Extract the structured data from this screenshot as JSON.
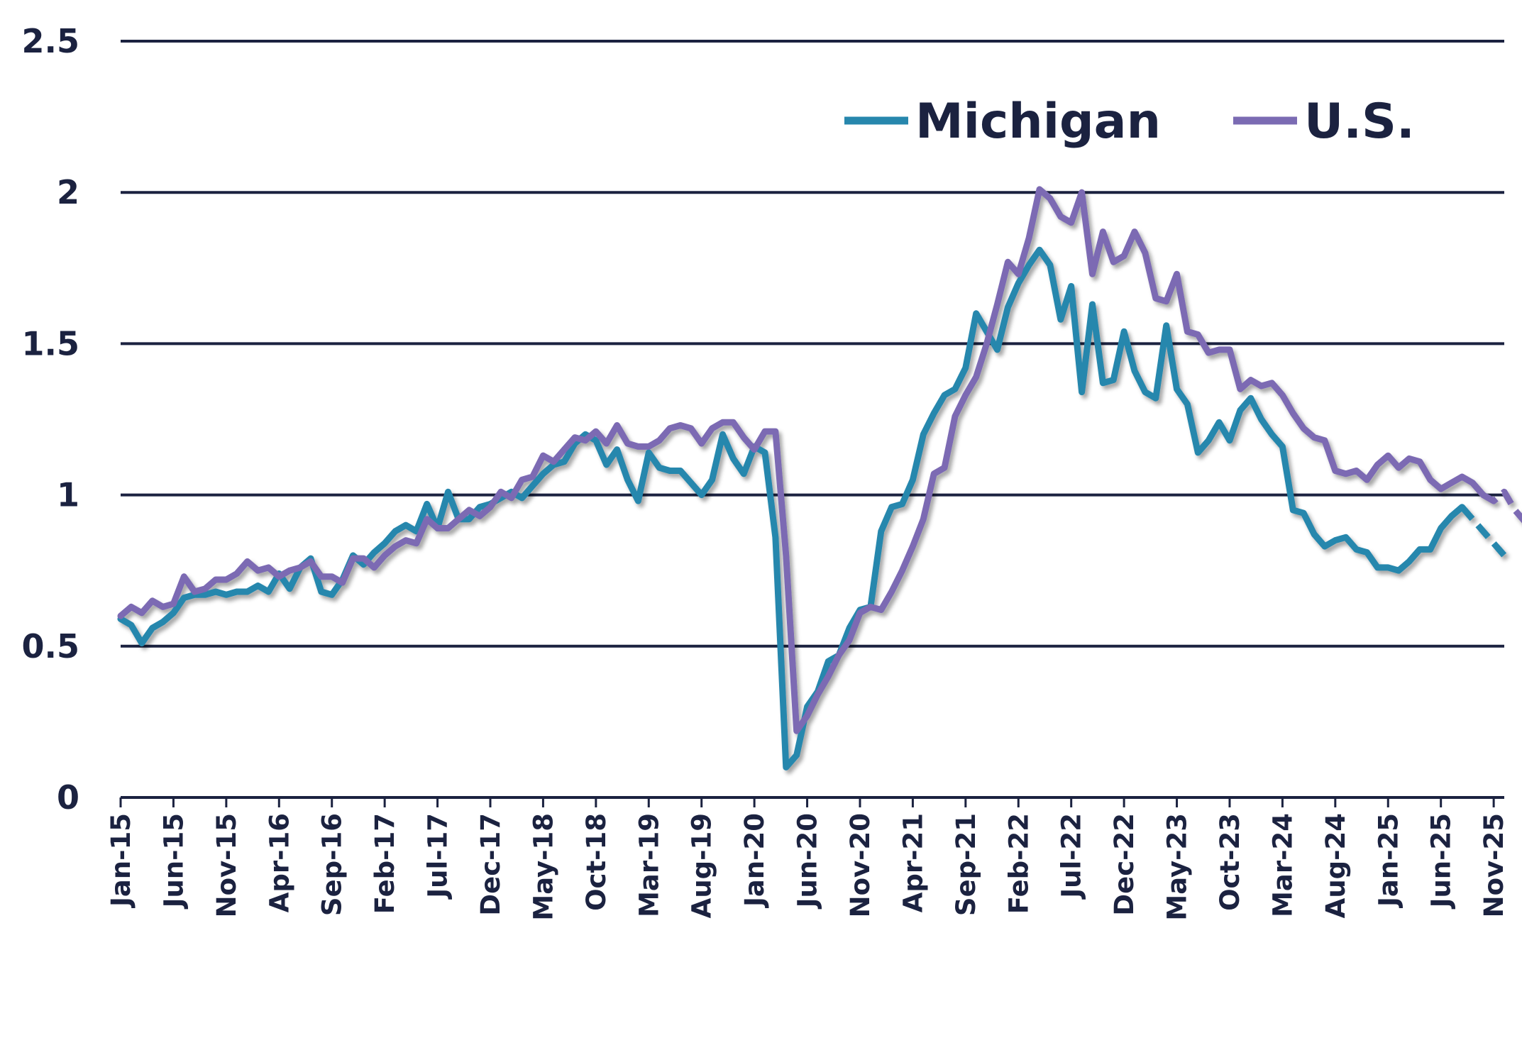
{
  "chart_data": {
    "type": "line",
    "title": "",
    "xlabel": "",
    "ylabel": "",
    "ylim": [
      0,
      2.5
    ],
    "yticks": [
      "0",
      "0.5",
      "1",
      "1.5",
      "2",
      "2.5"
    ],
    "grid": "horizontal",
    "legend_position": "top-right",
    "x_tick_labels": [
      "Jan-15",
      "Jun-15",
      "Nov-15",
      "Apr-16",
      "Sep-16",
      "Feb-17",
      "Jul-17",
      "Dec-17",
      "May-18",
      "Oct-18",
      "Mar-19",
      "Aug-19",
      "Jan-20",
      "Jun-20",
      "Nov-20",
      "Apr-21",
      "Sep-21",
      "Feb-22",
      "Jul-22",
      "Dec-22",
      "May-23",
      "Oct-23",
      "Mar-24",
      "Aug-24",
      "Jan-25",
      "Jun-25",
      "Nov-25"
    ],
    "colors": {
      "Michigan": "#2787ad",
      "U.S.": "#7b6bb3",
      "grid": "#1b2240",
      "text": "#1b2240"
    },
    "series": [
      {
        "name": "Michigan",
        "values": [
          0.59,
          0.57,
          0.51,
          0.56,
          0.58,
          0.61,
          0.66,
          0.67,
          0.67,
          0.68,
          0.67,
          0.68,
          0.68,
          0.7,
          0.68,
          0.74,
          0.69,
          0.76,
          0.79,
          0.68,
          0.67,
          0.72,
          0.8,
          0.77,
          0.81,
          0.84,
          0.88,
          0.9,
          0.88,
          0.97,
          0.89,
          1.01,
          0.92,
          0.92,
          0.96,
          0.97,
          0.99,
          1.01,
          0.99,
          1.03,
          1.07,
          1.1,
          1.11,
          1.17,
          1.2,
          1.18,
          1.1,
          1.15,
          1.05,
          0.98,
          1.14,
          1.09,
          1.08,
          1.08,
          1.04,
          1.0,
          1.05,
          1.2,
          1.12,
          1.07,
          1.16,
          1.14,
          0.86,
          0.1,
          0.14,
          0.3,
          0.35,
          0.45,
          0.47,
          0.56,
          0.62,
          0.63,
          0.88,
          0.96,
          0.97,
          1.05,
          1.2,
          1.27,
          1.33,
          1.35,
          1.42,
          1.6,
          1.54,
          1.48,
          1.62,
          1.7,
          1.76,
          1.81,
          1.76,
          1.58,
          1.69,
          1.34,
          1.63,
          1.37,
          1.38,
          1.54,
          1.41,
          1.34,
          1.32,
          1.56,
          1.35,
          1.3,
          1.14,
          1.18,
          1.24,
          1.18,
          1.28,
          1.32,
          1.25,
          1.2,
          1.16,
          0.95,
          0.94,
          0.87,
          0.83,
          0.85,
          0.86,
          0.82,
          0.81,
          0.76,
          0.76,
          0.75,
          0.78,
          0.82,
          0.82,
          0.89,
          0.93,
          0.96,
          0.92,
          0.88,
          0.84,
          0.8
        ],
        "projected_from_index": 127
      },
      {
        "name": "U.S.",
        "values": [
          0.6,
          0.63,
          0.61,
          0.65,
          0.63,
          0.64,
          0.73,
          0.68,
          0.69,
          0.72,
          0.72,
          0.74,
          0.78,
          0.75,
          0.76,
          0.73,
          0.75,
          0.76,
          0.78,
          0.73,
          0.73,
          0.71,
          0.79,
          0.79,
          0.76,
          0.8,
          0.83,
          0.85,
          0.84,
          0.92,
          0.89,
          0.89,
          0.92,
          0.95,
          0.93,
          0.96,
          1.01,
          0.99,
          1.05,
          1.06,
          1.13,
          1.11,
          1.15,
          1.19,
          1.18,
          1.21,
          1.17,
          1.23,
          1.17,
          1.16,
          1.16,
          1.18,
          1.22,
          1.23,
          1.22,
          1.17,
          1.22,
          1.24,
          1.24,
          1.19,
          1.15,
          1.21,
          1.21,
          0.8,
          0.22,
          0.27,
          0.34,
          0.4,
          0.47,
          0.52,
          0.61,
          0.63,
          0.62,
          0.68,
          0.75,
          0.83,
          0.92,
          1.07,
          1.09,
          1.26,
          1.33,
          1.39,
          1.5,
          1.63,
          1.77,
          1.73,
          1.85,
          2.01,
          1.98,
          1.92,
          1.9,
          2.0,
          1.73,
          1.87,
          1.77,
          1.79,
          1.87,
          1.8,
          1.65,
          1.64,
          1.73,
          1.54,
          1.53,
          1.47,
          1.48,
          1.48,
          1.35,
          1.38,
          1.36,
          1.37,
          1.33,
          1.27,
          1.22,
          1.19,
          1.18,
          1.08,
          1.07,
          1.08,
          1.05,
          1.1,
          1.13,
          1.09,
          1.12,
          1.11,
          1.05,
          1.02,
          1.04,
          1.06,
          1.04,
          1.0,
          0.98,
          1.01,
          0.95,
          0.91,
          0.89,
          0.87
        ],
        "projected_from_index": 129
      }
    ]
  }
}
